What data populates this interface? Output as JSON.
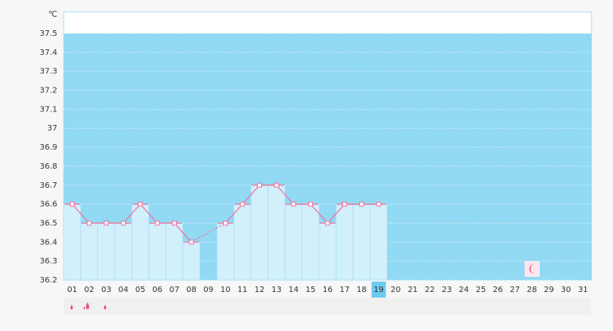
{
  "chart_data": {
    "type": "line",
    "y_label": "℃",
    "categories": [
      "01",
      "02",
      "03",
      "04",
      "05",
      "06",
      "07",
      "08",
      "09",
      "10",
      "11",
      "12",
      "13",
      "14",
      "15",
      "16",
      "17",
      "18",
      "19",
      "20",
      "21",
      "22",
      "23",
      "24",
      "25",
      "26",
      "27",
      "28",
      "29",
      "30",
      "31"
    ],
    "values": [
      36.6,
      36.5,
      36.5,
      36.5,
      36.6,
      36.5,
      36.5,
      36.4,
      null,
      36.5,
      36.6,
      36.7,
      36.7,
      36.6,
      36.6,
      36.5,
      36.6,
      36.6,
      36.6,
      null,
      null,
      null,
      null,
      null,
      null,
      null,
      null,
      null,
      null,
      null,
      null
    ],
    "color": "#f0709a",
    "bar_color": "#d2effc",
    "background": "#92d9f3",
    "ylim": [
      36.2,
      37.5
    ],
    "yticks": [
      36.2,
      36.3,
      36.4,
      36.5,
      36.6,
      36.7,
      36.8,
      36.9,
      37,
      37.1,
      37.2,
      37.3,
      37.4,
      37.5
    ],
    "grid": true,
    "selected_category": 18
  }
}
